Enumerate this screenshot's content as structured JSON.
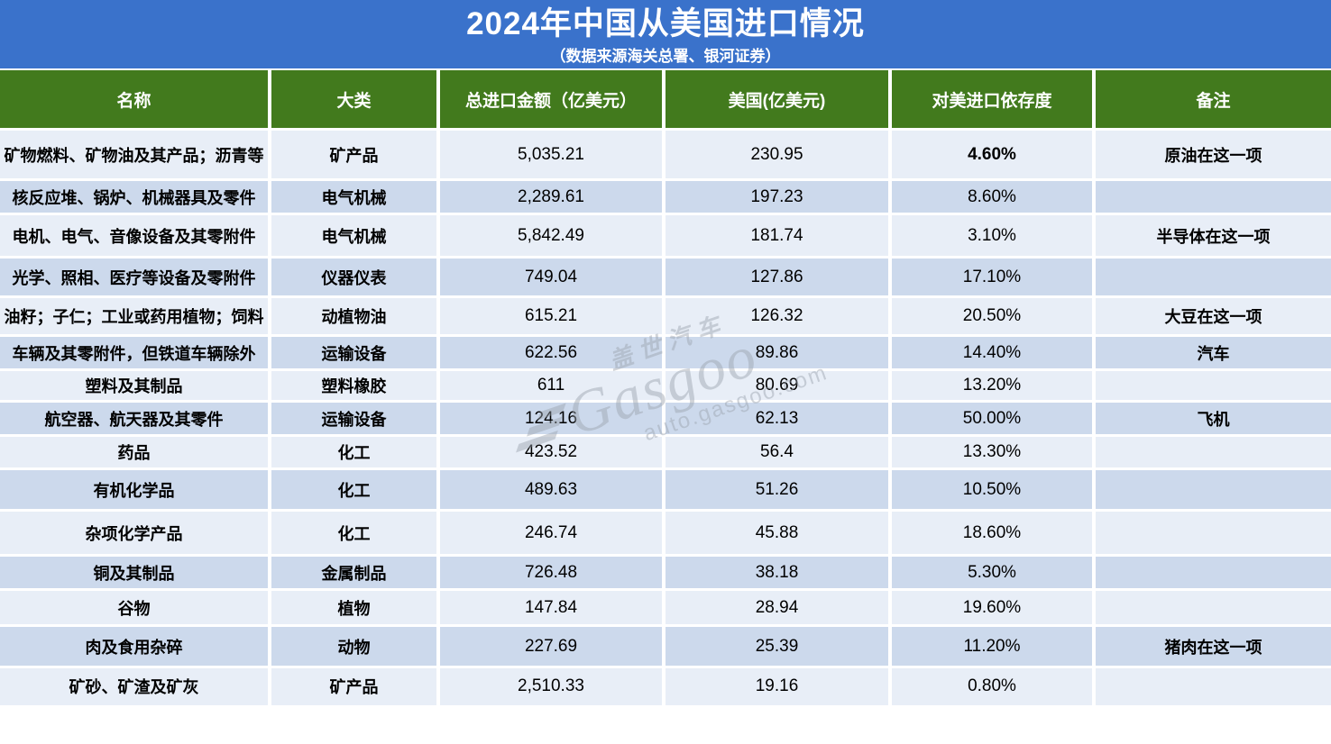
{
  "banner": {
    "title": "2024年中国从美国进口情况",
    "subtitle": "（数据来源海关总署、银河证券）",
    "background_color": "#3a72cb",
    "text_color": "#ffffff"
  },
  "watermark": {
    "brand_cn": "盖世汽车",
    "brand_en": "Gasgoo",
    "domain": "auto.gasgoo.com"
  },
  "table": {
    "header_background": "#427a1d",
    "light_row_color": "#e8eef7",
    "dark_row_color": "#ccd9ec",
    "highlight_red": "#fe0000",
    "columns": [
      "名称",
      "大类",
      "总进口金额（亿美元）",
      "美国(亿美元)",
      "对美进口依存度",
      "备注"
    ],
    "rows": [
      {
        "name": "矿物燃料、矿物油及其产品；沥青等",
        "category": "矿产品",
        "total": "5,035.21",
        "us": "230.95",
        "dependency": "4.60%",
        "note": "原油在这一项",
        "dependency_style": "bold"
      },
      {
        "name": "核反应堆、锅炉、机械器具及零件",
        "category": "电气机械",
        "total": "2,289.61",
        "us": "197.23",
        "dependency": "8.60%",
        "note": "",
        "dependency_style": "normal"
      },
      {
        "name": "电机、电气、音像设备及其零附件",
        "category": "电气机械",
        "total": "5,842.49",
        "us": "181.74",
        "dependency": "3.10%",
        "note": "半导体在这一项",
        "dependency_style": "normal"
      },
      {
        "name": "光学、照相、医疗等设备及零附件",
        "category": "仪器仪表",
        "total": "749.04",
        "us": "127.86",
        "dependency": "17.10%",
        "note": "",
        "dependency_style": "normal"
      },
      {
        "name": "油籽；子仁；工业或药用植物；饲料",
        "category": "动植物油",
        "total": "615.21",
        "us": "126.32",
        "dependency": "20.50%",
        "note": "大豆在这一项",
        "dependency_style": "normal"
      },
      {
        "name": "车辆及其零附件，但铁道车辆除外",
        "category": "运输设备",
        "total": "622.56",
        "us": "89.86",
        "dependency": "14.40%",
        "note": "汽车",
        "dependency_style": "normal"
      },
      {
        "name": "塑料及其制品",
        "category": "塑料橡胶",
        "total": "611",
        "us": "80.69",
        "dependency": "13.20%",
        "note": "",
        "dependency_style": "normal"
      },
      {
        "name": "航空器、航天器及其零件",
        "category": "运输设备",
        "total": "124.16",
        "us": "62.13",
        "dependency": "50.00%",
        "note": "飞机",
        "dependency_style": "red"
      },
      {
        "name": "药品",
        "category": "化工",
        "total": "423.52",
        "us": "56.4",
        "dependency": "13.30%",
        "note": "",
        "dependency_style": "normal"
      },
      {
        "name": "有机化学品",
        "category": "化工",
        "total": "489.63",
        "us": "51.26",
        "dependency": "10.50%",
        "note": "",
        "dependency_style": "normal"
      },
      {
        "name": "杂项化学产品",
        "category": "化工",
        "total": "246.74",
        "us": "45.88",
        "dependency": "18.60%",
        "note": "",
        "dependency_style": "normal"
      },
      {
        "name": "铜及其制品",
        "category": "金属制品",
        "total": "726.48",
        "us": "38.18",
        "dependency": "5.30%",
        "note": "",
        "dependency_style": "normal"
      },
      {
        "name": "谷物",
        "category": "植物",
        "total": "147.84",
        "us": "28.94",
        "dependency": "19.60%",
        "note": "",
        "dependency_style": "normal"
      },
      {
        "name": "肉及食用杂碎",
        "category": "动物",
        "total": "227.69",
        "us": "25.39",
        "dependency": "11.20%",
        "note": "猪肉在这一项",
        "dependency_style": "normal"
      },
      {
        "name": "矿砂、矿渣及矿灰",
        "category": "矿产品",
        "total": "2,510.33",
        "us": "19.16",
        "dependency": "0.80%",
        "note": "",
        "dependency_style": "normal"
      }
    ]
  },
  "chart_data": {
    "type": "table",
    "title": "2024年中国从美国进口情况",
    "subtitle": "（数据来源海关总署、银河证券）",
    "columns": [
      "名称",
      "大类",
      "总进口金额（亿美元）",
      "美国(亿美元)",
      "对美进口依存度",
      "备注"
    ],
    "rows": [
      [
        "矿物燃料、矿物油及其产品；沥青等",
        "矿产品",
        5035.21,
        230.95,
        "4.60%",
        "原油在这一项"
      ],
      [
        "核反应堆、锅炉、机械器具及零件",
        "电气机械",
        2289.61,
        197.23,
        "8.60%",
        ""
      ],
      [
        "电机、电气、音像设备及其零附件",
        "电气机械",
        5842.49,
        181.74,
        "3.10%",
        "半导体在这一项"
      ],
      [
        "光学、照相、医疗等设备及零附件",
        "仪器仪表",
        749.04,
        127.86,
        "17.10%",
        ""
      ],
      [
        "油籽；子仁；工业或药用植物；饲料",
        "动植物油",
        615.21,
        126.32,
        "20.50%",
        "大豆在这一项"
      ],
      [
        "车辆及其零附件，但铁道车辆除外",
        "运输设备",
        622.56,
        89.86,
        "14.40%",
        "汽车"
      ],
      [
        "塑料及其制品",
        "塑料橡胶",
        611,
        80.69,
        "13.20%",
        ""
      ],
      [
        "航空器、航天器及其零件",
        "运输设备",
        124.16,
        62.13,
        "50.00%",
        "飞机"
      ],
      [
        "药品",
        "化工",
        423.52,
        56.4,
        "13.30%",
        ""
      ],
      [
        "有机化学品",
        "化工",
        489.63,
        51.26,
        "10.50%",
        ""
      ],
      [
        "杂项化学产品",
        "化工",
        246.74,
        45.88,
        "18.60%",
        ""
      ],
      [
        "铜及其制品",
        "金属制品",
        726.48,
        38.18,
        "5.30%",
        ""
      ],
      [
        "谷物",
        "植物",
        147.84,
        28.94,
        "19.60%",
        ""
      ],
      [
        "肉及食用杂碎",
        "动物",
        227.69,
        25.39,
        "11.20%",
        "猪肉在这一项"
      ],
      [
        "矿砂、矿渣及矿灰",
        "矿产品",
        2510.33,
        19.16,
        "0.80%",
        ""
      ]
    ]
  }
}
